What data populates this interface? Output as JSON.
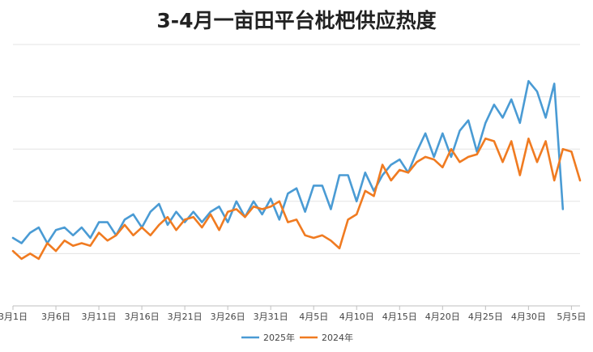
{
  "chart_data": {
    "type": "line",
    "title": "3-4月一亩田平台枇杷供应热度",
    "xlabel": "",
    "ylabel": "",
    "ylim": [
      0,
      100
    ],
    "grid": true,
    "legend_position": "bottom",
    "x_ticks": [
      "3月1日",
      "3月6日",
      "3月11日",
      "3月16日",
      "3月21日",
      "3月26日",
      "3月31日",
      "4月5日",
      "4月10日",
      "4月15日",
      "4月20日",
      "4月25日",
      "4月30日",
      "5月5日"
    ],
    "series": [
      {
        "name": "2025年",
        "color": "#4a9bd4",
        "values": [
          26,
          24,
          28,
          30,
          24,
          29,
          30,
          27,
          30,
          26,
          32,
          32,
          27,
          33,
          35,
          30,
          36,
          39,
          31,
          36,
          32,
          36,
          32,
          36,
          38,
          32,
          40,
          34,
          40,
          35,
          41,
          33,
          43,
          45,
          36,
          46,
          46,
          37,
          50,
          50,
          40,
          51,
          44,
          50,
          54,
          56,
          51,
          59,
          66,
          57,
          66,
          57,
          67,
          71,
          59,
          70,
          77,
          72,
          79,
          70,
          86,
          82,
          72,
          85,
          37
        ]
      },
      {
        "name": "2024年",
        "color": "#f07b21",
        "values": [
          21,
          18,
          20,
          18,
          24,
          21,
          25,
          23,
          24,
          23,
          28,
          25,
          27,
          31,
          27,
          30,
          27,
          31,
          34,
          29,
          33,
          34,
          30,
          35,
          29,
          36,
          37,
          34,
          38,
          37,
          38,
          40,
          32,
          33,
          27,
          26,
          27,
          25,
          22,
          33,
          35,
          44,
          42,
          54,
          48,
          52,
          51,
          55,
          57,
          56,
          53,
          60,
          55,
          57,
          58,
          64,
          63,
          55,
          63,
          50,
          64,
          55,
          63,
          48,
          60,
          59,
          48
        ]
      }
    ]
  }
}
